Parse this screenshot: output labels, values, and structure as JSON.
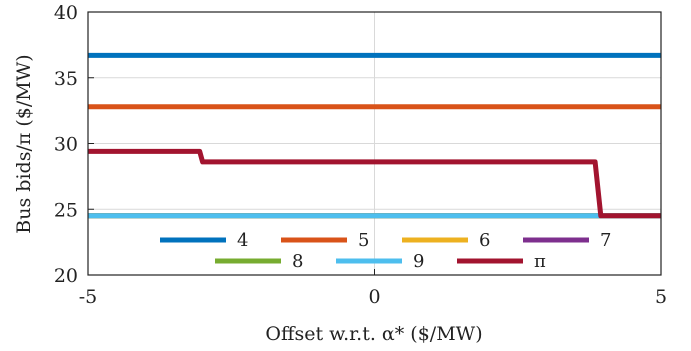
{
  "chart_data": {
    "type": "line",
    "xlabel": "Offset w.r.t. α* ($/MW)",
    "ylabel": "Bus bids/π ($/MW)",
    "xlim": [
      -5,
      5
    ],
    "ylim": [
      20,
      40
    ],
    "xticks": [
      -5,
      0,
      5
    ],
    "yticks": [
      20,
      25,
      30,
      35,
      40
    ],
    "grid": true,
    "legend": "bottom-center",
    "series": [
      {
        "name": "4",
        "color": "#0072bd",
        "x": [
          -5,
          5
        ],
        "y": [
          36.7,
          36.7
        ]
      },
      {
        "name": "5",
        "color": "#d95319",
        "x": [
          -5,
          5
        ],
        "y": [
          32.8,
          32.8
        ]
      },
      {
        "name": "6",
        "color": "#edb120",
        "x": [
          -5,
          5
        ],
        "y": [
          24.5,
          24.5
        ]
      },
      {
        "name": "7",
        "color": "#7e2f8e",
        "x": [
          -5,
          5
        ],
        "y": [
          24.5,
          24.5
        ]
      },
      {
        "name": "8",
        "color": "#77ac30",
        "x": [
          -5,
          5
        ],
        "y": [
          24.5,
          24.5
        ]
      },
      {
        "name": "9",
        "color": "#4dbeee",
        "x": [
          -5,
          5
        ],
        "y": [
          24.5,
          24.5
        ]
      },
      {
        "name": "π",
        "color": "#a2142f",
        "x": [
          -5,
          -3.05,
          -3.0,
          3.85,
          3.95,
          5
        ],
        "y": [
          29.4,
          29.4,
          28.6,
          28.6,
          24.5,
          24.5
        ]
      }
    ]
  }
}
